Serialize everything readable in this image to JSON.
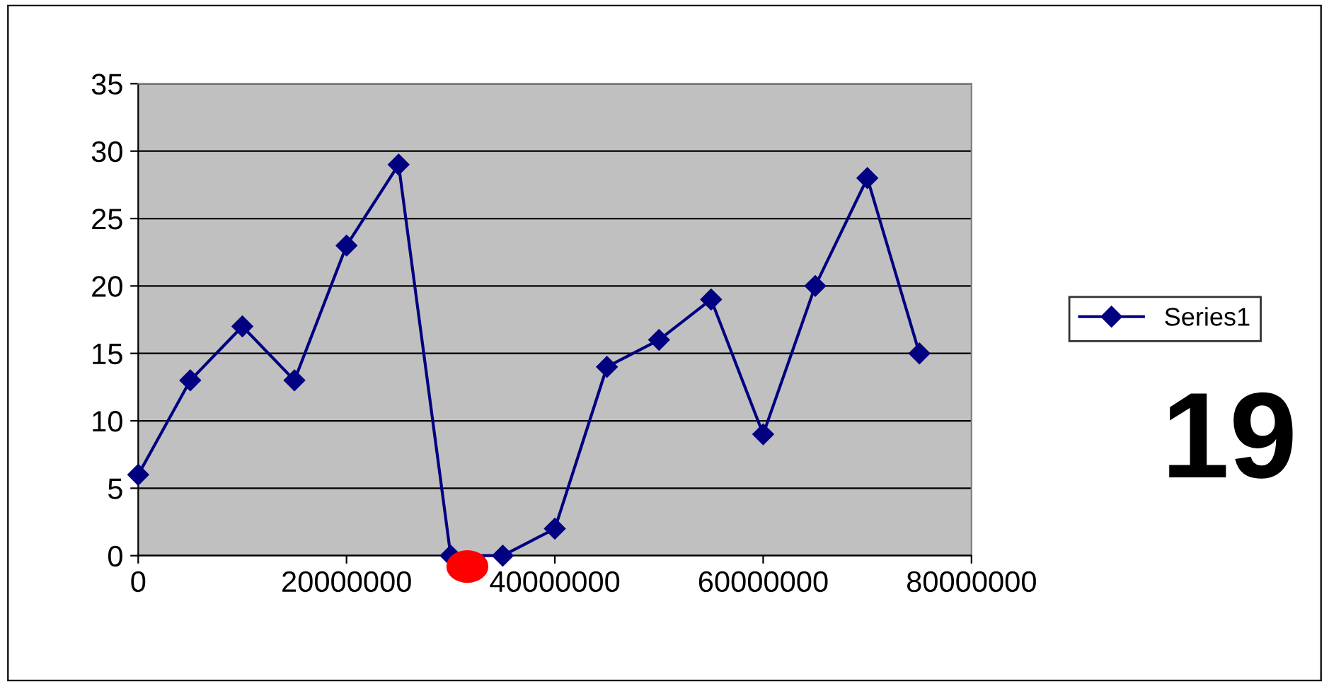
{
  "chart_data": {
    "type": "line",
    "x": [
      0,
      5000000,
      10000000,
      15000000,
      20000000,
      25000000,
      30000000,
      35000000,
      40000000,
      45000000,
      50000000,
      55000000,
      60000000,
      65000000,
      70000000,
      75000000
    ],
    "series": [
      {
        "name": "Series1",
        "color": "#000080",
        "values": [
          6,
          13,
          17,
          13,
          23,
          29,
          0,
          0,
          2,
          14,
          16,
          19,
          9,
          20,
          28,
          15
        ]
      }
    ],
    "xlim": [
      0,
      80000000
    ],
    "xticks": [
      0,
      20000000,
      40000000,
      60000000,
      80000000
    ],
    "ylim": [
      0,
      35
    ],
    "yticks": [
      0,
      5,
      10,
      15,
      20,
      25,
      30,
      35
    ],
    "grid": "y",
    "legend": "right",
    "marker": "diamond",
    "line_style": "solid",
    "annotations": [
      "19"
    ]
  }
}
